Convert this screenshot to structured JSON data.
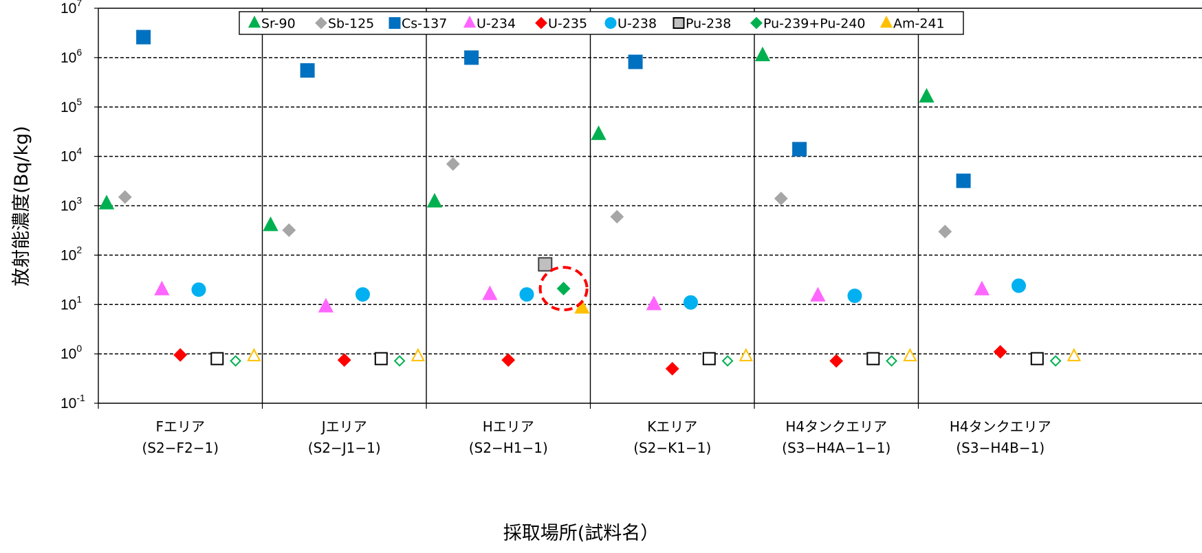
{
  "chart_data": {
    "type": "scatter",
    "title": "",
    "xlabel": "採取場所(試料名）",
    "ylabel": "放射能濃度(Bq/kg)",
    "yscale": "log",
    "ylim": [
      0.1,
      10000000
    ],
    "yticks": [
      {
        "base": "10",
        "exp": "-1"
      },
      {
        "base": "10",
        "exp": "0"
      },
      {
        "base": "10",
        "exp": "1"
      },
      {
        "base": "10",
        "exp": "2"
      },
      {
        "base": "10",
        "exp": "3"
      },
      {
        "base": "10",
        "exp": "4"
      },
      {
        "base": "10",
        "exp": "5"
      },
      {
        "base": "10",
        "exp": "6"
      },
      {
        "base": "10",
        "exp": "7"
      }
    ],
    "categories": [
      {
        "line1": "Fエリア",
        "line2": "(S2−F2−1)"
      },
      {
        "line1": "Jエリア",
        "line2": "(S2−J1−1)"
      },
      {
        "line1": "Hエリア",
        "line2": "(S2−H1−1)"
      },
      {
        "line1": "Kエリア",
        "line2": "(S2−K1−1)"
      },
      {
        "line1": "H4タンクエリア",
        "line2": "(S3−H4A−1−1)"
      },
      {
        "line1": "H4タンクエリア",
        "line2": "(S3−H4B−1)"
      }
    ],
    "grid": "horizontal-dashed",
    "legend_position": "top",
    "series": [
      {
        "name": "Sr-90",
        "marker": "triangle",
        "color": "#00B050",
        "filled": true,
        "values": [
          1100,
          400,
          1200,
          28000,
          1100000,
          160000
        ]
      },
      {
        "name": "Sb-125",
        "marker": "diamond",
        "color": "#A6A6A6",
        "filled": true,
        "values": [
          1500,
          320,
          7000,
          600,
          1400,
          300
        ]
      },
      {
        "name": "Cs-137",
        "marker": "square",
        "color": "#0070C0",
        "filled": true,
        "values": [
          2600000,
          550000,
          1000000,
          820000,
          14000,
          3200
        ]
      },
      {
        "name": "U-234",
        "marker": "triangle",
        "color": "#FF66FF",
        "filled": true,
        "values": [
          20,
          9,
          16,
          10,
          15,
          20
        ]
      },
      {
        "name": "U-235",
        "marker": "diamond",
        "color": "#FF0000",
        "filled": true,
        "values": [
          0.95,
          0.75,
          0.75,
          0.5,
          0.72,
          1.1
        ]
      },
      {
        "name": "U-238",
        "marker": "circle",
        "color": "#00B0F0",
        "filled": true,
        "values": [
          20,
          16,
          16,
          11,
          15,
          24
        ]
      },
      {
        "name": "Pu-238",
        "marker": "square",
        "color": "#BFBFBF",
        "filled": true,
        "values": [
          0.8,
          0.8,
          65,
          0.8,
          0.8,
          0.8
        ],
        "hollow": [
          true,
          true,
          false,
          true,
          true,
          true
        ]
      },
      {
        "name": "Pu-239+Pu-240",
        "marker": "diamond",
        "color": "#00B050",
        "filled": true,
        "values": [
          0.72,
          0.72,
          21,
          0.72,
          0.72,
          0.72
        ],
        "hollow": [
          true,
          true,
          false,
          true,
          true,
          true
        ]
      },
      {
        "name": "Am-241",
        "marker": "triangle",
        "color": "#FFC000",
        "filled": true,
        "values": [
          0.9,
          0.9,
          8.5,
          0.9,
          0.9,
          0.9
        ],
        "hollow": [
          true,
          true,
          false,
          true,
          true,
          true
        ]
      }
    ],
    "annotations": [
      {
        "type": "dashed-circle",
        "color": "#FF0000",
        "category_index": 2,
        "series": "Pu-239+Pu-240",
        "value": 21
      }
    ]
  }
}
